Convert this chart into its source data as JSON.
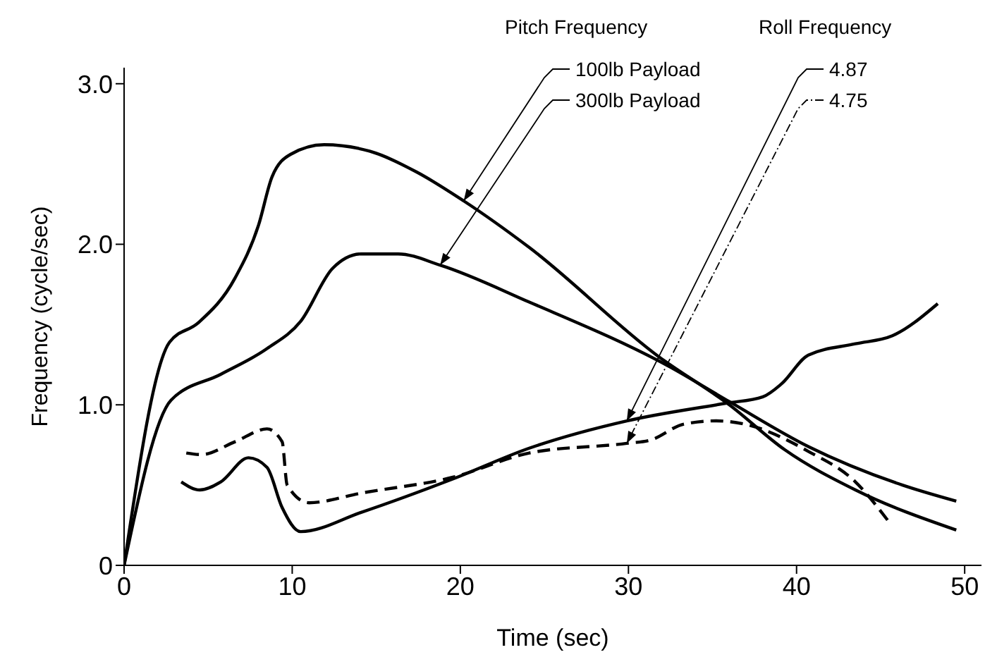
{
  "chart_data": {
    "type": "line",
    "xlabel": "Time (sec)",
    "ylabel": "Frequency (cycle/sec)",
    "xlim": [
      0,
      51
    ],
    "xticks": [
      0,
      10,
      20,
      30,
      40,
      50
    ],
    "ylim": [
      0,
      3.1
    ],
    "yticks": [
      0,
      {
        "value": 1,
        "label": "1.0"
      },
      {
        "value": 2,
        "label": "2.0"
      },
      {
        "value": 3,
        "label": "3.0"
      }
    ],
    "grid": false,
    "legend": false,
    "marker": "none",
    "annotations": [
      "Pitch Frequency",
      "Roll Frequency"
    ],
    "series": [
      {
        "name": "100lb Payload",
        "color": "#000000",
        "line_style": "solid",
        "x": [
          0,
          2.7,
          4.4,
          6.6,
          8.0,
          8.8,
          9.9,
          11.9,
          14.6,
          17.4,
          20.2,
          24.1,
          31.8,
          36.0,
          39.3,
          43.5,
          49.5
        ],
        "values": [
          0,
          1.39,
          1.51,
          1.79,
          2.12,
          2.42,
          2.56,
          2.62,
          2.58,
          2.45,
          2.27,
          1.98,
          1.3,
          1.0,
          0.72,
          0.47,
          0.22
        ]
      },
      {
        "name": "300lb Payload",
        "color": "#000000",
        "line_style": "solid",
        "x": [
          0,
          2.8,
          5.75,
          8.5,
          10.5,
          12.4,
          14.1,
          16.3,
          18.8,
          24.1,
          32.4,
          36.0,
          40.7,
          46.3,
          49.5
        ],
        "values": [
          0,
          1.03,
          1.19,
          1.35,
          1.52,
          1.85,
          1.94,
          1.94,
          1.87,
          1.64,
          1.24,
          1.02,
          0.74,
          0.5,
          0.4
        ]
      },
      {
        "name": "4.87",
        "color": "#000000",
        "line_style": "solid",
        "x": [
          3.4,
          4.5,
          5.75,
          7.4,
          8.5,
          9.4,
          10.5,
          14.1,
          19.6,
          24.1,
          29.9,
          35.8,
          38.0,
          39.1,
          40.7,
          43.5,
          45.7,
          48.4
        ],
        "values": [
          0.52,
          0.47,
          0.52,
          0.67,
          0.61,
          0.36,
          0.21,
          0.33,
          0.54,
          0.73,
          0.9,
          1.01,
          1.05,
          1.13,
          1.31,
          1.38,
          1.43,
          1.63
        ]
      },
      {
        "name": "4.75",
        "color": "#000000",
        "line_style": "dashed",
        "x": [
          3.7,
          4.6,
          6.6,
          8.5,
          9.4,
          9.7,
          11.0,
          14.1,
          19.6,
          24.1,
          29.9,
          31.3,
          33.3,
          35.2,
          36.9,
          40.7,
          43.5,
          45.5
        ],
        "values": [
          0.7,
          0.69,
          0.77,
          0.85,
          0.77,
          0.5,
          0.39,
          0.45,
          0.55,
          0.7,
          0.76,
          0.78,
          0.88,
          0.9,
          0.88,
          0.71,
          0.52,
          0.27
        ]
      }
    ]
  }
}
